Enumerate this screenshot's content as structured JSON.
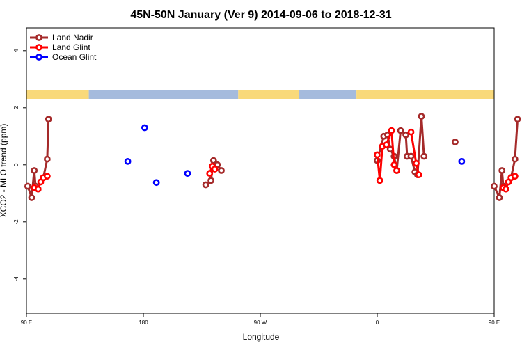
{
  "chart_data": {
    "type": "line",
    "title": "45N-50N January (Ver 9)   2014-09-06 to 2018-12-31",
    "xlabel": "Longitude",
    "ylabel": "XCO2 - MLO trend (ppm)",
    "xlim": [
      90,
      450
    ],
    "ylim": [
      -5.2,
      4.8
    ],
    "x_ticks": [
      {
        "value": 90,
        "label": "90 E"
      },
      {
        "value": 180,
        "label": "180"
      },
      {
        "value": 270,
        "label": "90 W"
      },
      {
        "value": 360,
        "label": "0"
      },
      {
        "value": 450,
        "label": "90 E"
      },
      {
        "value": 540,
        "label": "180"
      }
    ],
    "y_ticks": [
      {
        "value": 4,
        "label": "4"
      },
      {
        "value": 2,
        "label": "2"
      },
      {
        "value": 0,
        "label": "0"
      },
      {
        "value": -2,
        "label": "-2"
      },
      {
        "value": -4,
        "label": "-4"
      }
    ],
    "legend_position": "top-left",
    "surface_strip": {
      "land_color": "#F9D97A",
      "ocean_color": "#A5BBDD",
      "segments": [
        {
          "from": 90,
          "to": 138,
          "surface": "land"
        },
        {
          "from": 138,
          "to": 253,
          "surface": "ocean"
        },
        {
          "from": 253,
          "to": 300,
          "surface": "land"
        },
        {
          "from": 300,
          "to": 344,
          "surface": "ocean"
        },
        {
          "from": 344,
          "to": 500,
          "surface": "land"
        },
        {
          "from": 500,
          "to": 540,
          "surface": "ocean"
        }
      ]
    },
    "series": [
      {
        "name": "Land Nadir",
        "color": "#A52A2A",
        "segments": [
          [
            [
              91,
              -0.75
            ],
            [
              94,
              -1.15
            ],
            [
              96,
              -0.2
            ],
            [
              97,
              -0.75
            ],
            [
              99,
              -0.85
            ]
          ],
          [
            [
              103,
              -0.45
            ],
            [
              106,
              0.2
            ],
            [
              107,
              1.6
            ]
          ],
          [
            [
              228,
              -0.7
            ],
            [
              232,
              -0.55
            ],
            [
              234,
              0.15
            ],
            [
              237,
              0.0
            ],
            [
              240,
              -0.2
            ]
          ],
          [
            [
              360,
              0.15
            ],
            [
              365,
              1.0
            ],
            [
              368,
              1.05
            ],
            [
              370,
              0.55
            ],
            [
              373,
              0.3
            ],
            [
              375,
              -0.2
            ],
            [
              378,
              1.2
            ],
            [
              382,
              1.05
            ],
            [
              383,
              0.3
            ],
            [
              386,
              0.3
            ],
            [
              389,
              -0.25
            ],
            [
              391,
              -0.35
            ],
            [
              394,
              1.7
            ],
            [
              396,
              0.3
            ]
          ],
          [
            [
              420,
              0.8
            ]
          ],
          [
            [
              450,
              -0.75
            ],
            [
              454,
              -1.15
            ],
            [
              456,
              -0.2
            ],
            [
              457,
              -0.75
            ],
            [
              459,
              -0.85
            ]
          ],
          [
            [
              463,
              -0.45
            ],
            [
              466,
              0.2
            ],
            [
              468,
              1.6
            ]
          ]
        ]
      },
      {
        "name": "Land Glint",
        "color": "#FF0000",
        "segments": [
          [
            [
              96,
              -0.8
            ],
            [
              99,
              -0.85
            ],
            [
              101,
              -0.6
            ],
            [
              103,
              -0.45
            ],
            [
              106,
              -0.4
            ]
          ],
          [
            [
              231,
              -0.3
            ],
            [
              233,
              -0.05
            ],
            [
              235,
              -0.15
            ]
          ],
          [
            [
              360,
              0.35
            ],
            [
              362,
              -0.55
            ],
            [
              364,
              0.65
            ],
            [
              367,
              0.7
            ],
            [
              371,
              1.2
            ],
            [
              373,
              0.0
            ],
            [
              375,
              -0.2
            ]
          ],
          [
            [
              386,
              1.15
            ],
            [
              390,
              0.05
            ],
            [
              392,
              -0.35
            ]
          ],
          [
            [
              457,
              -0.8
            ],
            [
              459,
              -0.85
            ],
            [
              461,
              -0.6
            ],
            [
              463,
              -0.45
            ],
            [
              466,
              -0.4
            ]
          ]
        ]
      },
      {
        "name": "Ocean Glint",
        "color": "#0000FF",
        "segments": [
          [
            [
              168,
              0.12
            ]
          ],
          [
            [
              181,
              1.3
            ]
          ],
          [
            [
              190,
              -0.62
            ]
          ],
          [
            [
              214,
              -0.3
            ]
          ],
          [
            [
              425,
              0.12
            ]
          ]
        ]
      }
    ]
  }
}
